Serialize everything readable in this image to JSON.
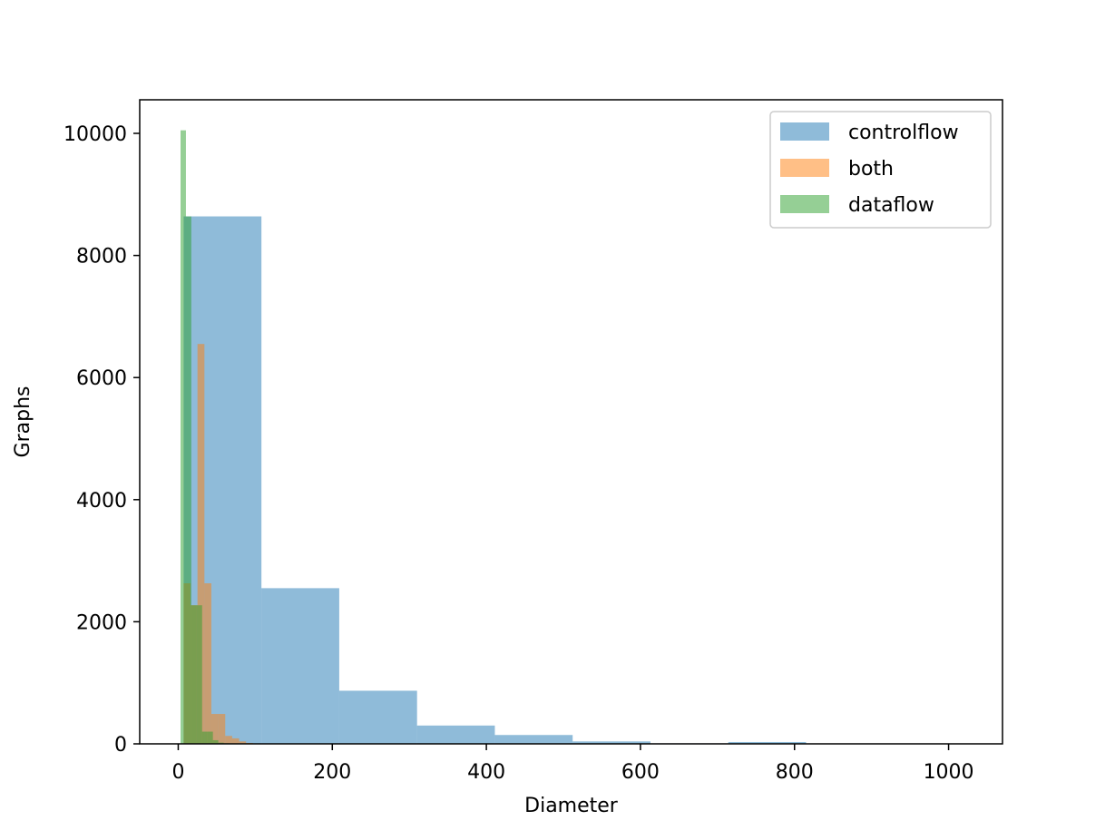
{
  "chart_data": {
    "type": "bar",
    "subtype": "histogram-overlay",
    "xlabel": "Diameter",
    "ylabel": "Graphs",
    "title": "",
    "xlim": [
      -50,
      1070
    ],
    "ylim": [
      0,
      10550
    ],
    "xticks": [
      0,
      200,
      400,
      600,
      800,
      1000
    ],
    "yticks": [
      0,
      2000,
      4000,
      6000,
      8000,
      10000
    ],
    "grid": false,
    "legend_position": "top-right",
    "series": [
      {
        "name": "controlflow",
        "color": "#1f77b4",
        "opacity": 0.5,
        "bins": [
          {
            "x0": 7,
            "x1": 108,
            "value": 8640
          },
          {
            "x0": 108,
            "x1": 209,
            "value": 2550
          },
          {
            "x0": 209,
            "x1": 310,
            "value": 870
          },
          {
            "x0": 310,
            "x1": 411,
            "value": 300
          },
          {
            "x0": 411,
            "x1": 512,
            "value": 145
          },
          {
            "x0": 512,
            "x1": 613,
            "value": 40
          },
          {
            "x0": 613,
            "x1": 714,
            "value": 8
          },
          {
            "x0": 714,
            "x1": 815,
            "value": 30
          },
          {
            "x0": 815,
            "x1": 916,
            "value": 3
          },
          {
            "x0": 916,
            "x1": 1017,
            "value": 2
          }
        ]
      },
      {
        "name": "both",
        "color": "#ff7f0e",
        "opacity": 0.5,
        "bins": [
          {
            "x0": 7,
            "x1": 16,
            "value": 2630
          },
          {
            "x0": 16,
            "x1": 25,
            "value": 2270
          },
          {
            "x0": 25,
            "x1": 34,
            "value": 6550
          },
          {
            "x0": 34,
            "x1": 43,
            "value": 2630
          },
          {
            "x0": 43,
            "x1": 52,
            "value": 490
          },
          {
            "x0": 52,
            "x1": 61,
            "value": 490
          },
          {
            "x0": 61,
            "x1": 70,
            "value": 130
          },
          {
            "x0": 70,
            "x1": 79,
            "value": 90
          },
          {
            "x0": 79,
            "x1": 88,
            "value": 40
          },
          {
            "x0": 88,
            "x1": 97,
            "value": 15
          }
        ]
      },
      {
        "name": "dataflow",
        "color": "#2ca02c",
        "opacity": 0.5,
        "bins": [
          {
            "x0": 3,
            "x1": 10,
            "value": 10050
          },
          {
            "x0": 10,
            "x1": 17,
            "value": 8640
          },
          {
            "x0": 17,
            "x1": 24,
            "value": 2270
          },
          {
            "x0": 24,
            "x1": 31,
            "value": 2270
          },
          {
            "x0": 31,
            "x1": 38,
            "value": 200
          },
          {
            "x0": 38,
            "x1": 45,
            "value": 200
          },
          {
            "x0": 45,
            "x1": 52,
            "value": 60
          },
          {
            "x0": 52,
            "x1": 59,
            "value": 20
          },
          {
            "x0": 59,
            "x1": 66,
            "value": 10
          },
          {
            "x0": 66,
            "x1": 73,
            "value": 5
          }
        ]
      }
    ]
  }
}
